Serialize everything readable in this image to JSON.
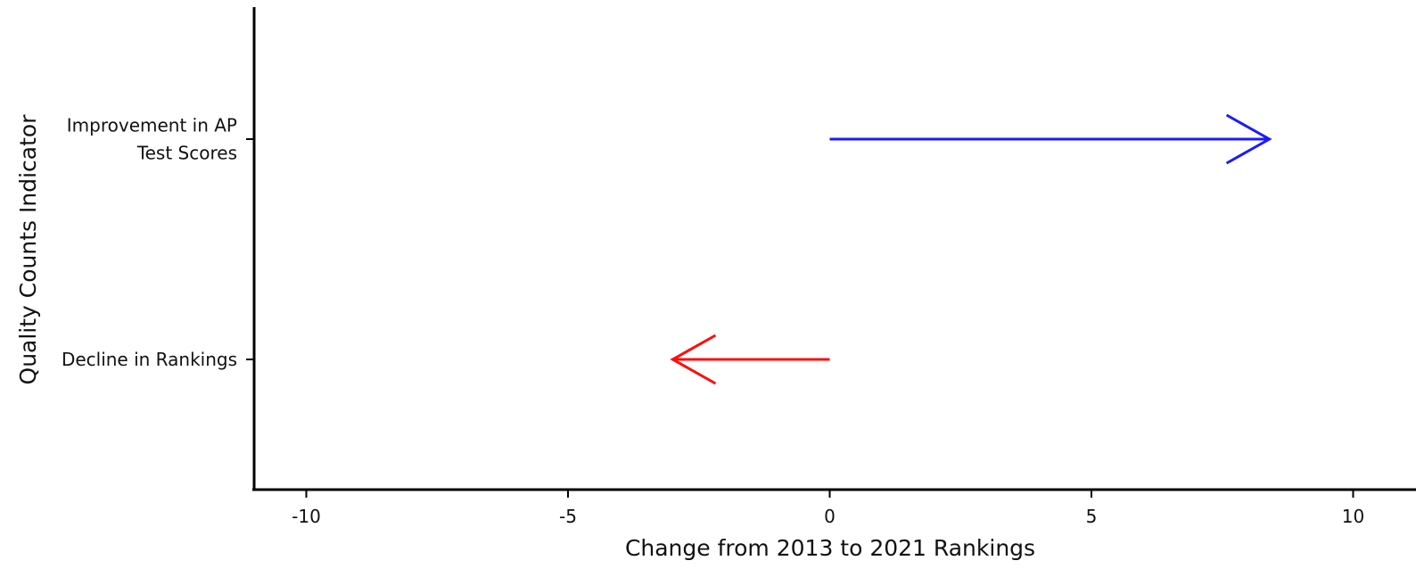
{
  "chart_data": {
    "type": "arrow",
    "title": "",
    "xlabel": "Change from 2013 to 2021 Rankings",
    "ylabel": "Quality Counts Indicator",
    "xlim": [
      -11,
      11
    ],
    "xticks": [
      -10,
      -5,
      0,
      5,
      10
    ],
    "xtick_labels": [
      "-10",
      "-5",
      "0",
      "5",
      "10"
    ],
    "grid": false,
    "legend": "none",
    "categories": [
      {
        "label_lines": [
          "Improvement in AP",
          "Test Scores"
        ],
        "start": 0,
        "end": 8.4,
        "color": "#1a1aff"
      },
      {
        "label_lines": [
          "Decline in Rankings"
        ],
        "start": 0,
        "end": -3,
        "color": "#ff0d0d"
      }
    ]
  }
}
